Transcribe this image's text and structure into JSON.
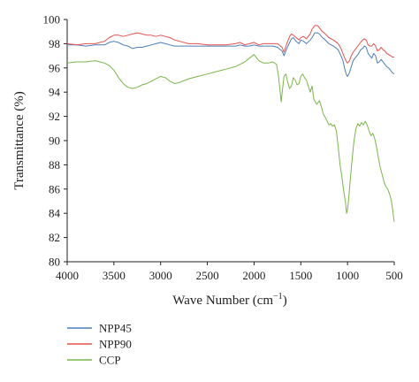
{
  "chart_data": {
    "type": "line",
    "title": "",
    "xlabel": "Wave Number (cm",
    "xlabel_superscript": "−1",
    "xlabel_suffix": ")",
    "ylabel": "Transmittance (%)",
    "xlim": [
      4000,
      500
    ],
    "x_reversed": true,
    "ylim": [
      80,
      100
    ],
    "x_ticks": [
      4000,
      3500,
      3000,
      2500,
      2000,
      1500,
      1000,
      500
    ],
    "y_ticks": [
      80,
      82,
      84,
      86,
      88,
      90,
      92,
      94,
      96,
      98,
      100
    ],
    "grid": false,
    "legend_position": "bottom-left",
    "series": [
      {
        "name": "NPP45",
        "color": "#4a7ebb",
        "points": [
          [
            4000,
            97.9
          ],
          [
            3900,
            97.9
          ],
          [
            3800,
            97.8
          ],
          [
            3700,
            97.9
          ],
          [
            3600,
            97.9
          ],
          [
            3550,
            98.1
          ],
          [
            3500,
            98.2
          ],
          [
            3450,
            98.1
          ],
          [
            3400,
            97.9
          ],
          [
            3350,
            97.8
          ],
          [
            3300,
            97.6
          ],
          [
            3250,
            97.7
          ],
          [
            3200,
            97.7
          ],
          [
            3150,
            97.8
          ],
          [
            3100,
            97.9
          ],
          [
            3050,
            98.0
          ],
          [
            3000,
            98.1
          ],
          [
            2950,
            98.0
          ],
          [
            2900,
            97.9
          ],
          [
            2850,
            97.8
          ],
          [
            2800,
            97.8
          ],
          [
            2700,
            97.8
          ],
          [
            2600,
            97.8
          ],
          [
            2500,
            97.8
          ],
          [
            2400,
            97.8
          ],
          [
            2300,
            97.8
          ],
          [
            2200,
            97.8
          ],
          [
            2150,
            97.9
          ],
          [
            2100,
            97.8
          ],
          [
            2050,
            97.8
          ],
          [
            2000,
            97.9
          ],
          [
            1950,
            97.8
          ],
          [
            1900,
            97.8
          ],
          [
            1850,
            97.8
          ],
          [
            1800,
            97.8
          ],
          [
            1750,
            97.7
          ],
          [
            1700,
            97.4
          ],
          [
            1680,
            97.0
          ],
          [
            1650,
            97.6
          ],
          [
            1600,
            98.4
          ],
          [
            1580,
            98.5
          ],
          [
            1550,
            98.2
          ],
          [
            1520,
            98.0
          ],
          [
            1500,
            98.3
          ],
          [
            1470,
            98.2
          ],
          [
            1440,
            98.0
          ],
          [
            1400,
            98.3
          ],
          [
            1380,
            98.5
          ],
          [
            1350,
            98.9
          ],
          [
            1320,
            98.9
          ],
          [
            1300,
            98.8
          ],
          [
            1270,
            98.5
          ],
          [
            1250,
            98.4
          ],
          [
            1200,
            98.0
          ],
          [
            1150,
            97.8
          ],
          [
            1100,
            97.5
          ],
          [
            1070,
            97.0
          ],
          [
            1050,
            96.6
          ],
          [
            1030,
            95.9
          ],
          [
            1010,
            95.4
          ],
          [
            1000,
            95.3
          ],
          [
            980,
            95.6
          ],
          [
            960,
            96.1
          ],
          [
            940,
            96.6
          ],
          [
            920,
            96.8
          ],
          [
            900,
            97.0
          ],
          [
            880,
            97.2
          ],
          [
            860,
            97.5
          ],
          [
            840,
            97.6
          ],
          [
            820,
            97.8
          ],
          [
            800,
            97.7
          ],
          [
            780,
            97.2
          ],
          [
            760,
            97.0
          ],
          [
            740,
            96.8
          ],
          [
            720,
            97.2
          ],
          [
            700,
            97.0
          ],
          [
            680,
            96.4
          ],
          [
            660,
            96.5
          ],
          [
            640,
            96.7
          ],
          [
            620,
            96.5
          ],
          [
            600,
            96.3
          ],
          [
            580,
            96.1
          ],
          [
            560,
            96.0
          ],
          [
            540,
            95.8
          ],
          [
            520,
            95.6
          ],
          [
            500,
            95.5
          ]
        ]
      },
      {
        "name": "NPP90",
        "color": "#e8524a",
        "points": [
          [
            4000,
            98.0
          ],
          [
            3900,
            97.9
          ],
          [
            3800,
            98.0
          ],
          [
            3700,
            98.0
          ],
          [
            3650,
            98.1
          ],
          [
            3600,
            98.2
          ],
          [
            3550,
            98.5
          ],
          [
            3500,
            98.7
          ],
          [
            3450,
            98.7
          ],
          [
            3400,
            98.6
          ],
          [
            3350,
            98.7
          ],
          [
            3300,
            98.8
          ],
          [
            3250,
            98.9
          ],
          [
            3200,
            98.8
          ],
          [
            3150,
            98.7
          ],
          [
            3100,
            98.7
          ],
          [
            3050,
            98.6
          ],
          [
            3000,
            98.7
          ],
          [
            2950,
            98.6
          ],
          [
            2900,
            98.5
          ],
          [
            2850,
            98.3
          ],
          [
            2800,
            98.2
          ],
          [
            2700,
            98.0
          ],
          [
            2600,
            98.0
          ],
          [
            2500,
            97.9
          ],
          [
            2400,
            97.9
          ],
          [
            2300,
            97.9
          ],
          [
            2200,
            98.0
          ],
          [
            2150,
            98.1
          ],
          [
            2100,
            97.9
          ],
          [
            2050,
            98.0
          ],
          [
            2000,
            98.1
          ],
          [
            1950,
            97.9
          ],
          [
            1900,
            98.0
          ],
          [
            1850,
            98.0
          ],
          [
            1800,
            98.0
          ],
          [
            1750,
            98.0
          ],
          [
            1700,
            97.7
          ],
          [
            1680,
            97.3
          ],
          [
            1650,
            98.0
          ],
          [
            1620,
            98.6
          ],
          [
            1600,
            98.8
          ],
          [
            1580,
            98.7
          ],
          [
            1550,
            98.5
          ],
          [
            1520,
            98.3
          ],
          [
            1500,
            98.5
          ],
          [
            1470,
            98.6
          ],
          [
            1440,
            98.4
          ],
          [
            1400,
            98.8
          ],
          [
            1380,
            99.2
          ],
          [
            1350,
            99.5
          ],
          [
            1320,
            99.5
          ],
          [
            1300,
            99.3
          ],
          [
            1270,
            99.0
          ],
          [
            1250,
            98.9
          ],
          [
            1200,
            98.5
          ],
          [
            1150,
            98.3
          ],
          [
            1100,
            98.0
          ],
          [
            1070,
            97.6
          ],
          [
            1050,
            97.2
          ],
          [
            1030,
            96.8
          ],
          [
            1010,
            96.5
          ],
          [
            1000,
            96.4
          ],
          [
            980,
            96.6
          ],
          [
            960,
            97.0
          ],
          [
            940,
            97.3
          ],
          [
            920,
            97.5
          ],
          [
            900,
            97.7
          ],
          [
            880,
            97.9
          ],
          [
            860,
            98.1
          ],
          [
            840,
            98.3
          ],
          [
            820,
            98.4
          ],
          [
            800,
            98.3
          ],
          [
            780,
            97.9
          ],
          [
            760,
            97.8
          ],
          [
            740,
            97.8
          ],
          [
            720,
            98.0
          ],
          [
            700,
            97.8
          ],
          [
            680,
            97.4
          ],
          [
            660,
            97.5
          ],
          [
            640,
            97.7
          ],
          [
            620,
            97.5
          ],
          [
            600,
            97.4
          ],
          [
            580,
            97.2
          ],
          [
            560,
            97.1
          ],
          [
            540,
            97.0
          ],
          [
            520,
            96.9
          ],
          [
            500,
            96.9
          ]
        ]
      },
      {
        "name": "CCP",
        "color": "#7ab648",
        "points": [
          [
            4000,
            96.4
          ],
          [
            3900,
            96.5
          ],
          [
            3800,
            96.5
          ],
          [
            3700,
            96.6
          ],
          [
            3650,
            96.5
          ],
          [
            3600,
            96.4
          ],
          [
            3550,
            96.2
          ],
          [
            3500,
            95.8
          ],
          [
            3450,
            95.2
          ],
          [
            3400,
            94.7
          ],
          [
            3350,
            94.4
          ],
          [
            3300,
            94.3
          ],
          [
            3250,
            94.4
          ],
          [
            3200,
            94.6
          ],
          [
            3150,
            94.7
          ],
          [
            3100,
            94.9
          ],
          [
            3050,
            95.1
          ],
          [
            3000,
            95.3
          ],
          [
            2950,
            95.2
          ],
          [
            2900,
            94.9
          ],
          [
            2850,
            94.7
          ],
          [
            2800,
            94.8
          ],
          [
            2700,
            95.1
          ],
          [
            2600,
            95.3
          ],
          [
            2500,
            95.5
          ],
          [
            2400,
            95.7
          ],
          [
            2300,
            95.9
          ],
          [
            2200,
            96.1
          ],
          [
            2150,
            96.3
          ],
          [
            2100,
            96.5
          ],
          [
            2050,
            96.8
          ],
          [
            2000,
            97.1
          ],
          [
            1950,
            96.6
          ],
          [
            1900,
            96.4
          ],
          [
            1850,
            96.4
          ],
          [
            1800,
            96.5
          ],
          [
            1760,
            96.3
          ],
          [
            1740,
            95.4
          ],
          [
            1720,
            94.0
          ],
          [
            1710,
            93.2
          ],
          [
            1700,
            93.9
          ],
          [
            1680,
            95.3
          ],
          [
            1660,
            95.5
          ],
          [
            1640,
            94.8
          ],
          [
            1620,
            94.3
          ],
          [
            1600,
            94.5
          ],
          [
            1580,
            95.2
          ],
          [
            1560,
            95.0
          ],
          [
            1540,
            94.6
          ],
          [
            1520,
            94.7
          ],
          [
            1500,
            95.3
          ],
          [
            1480,
            95.5
          ],
          [
            1460,
            95.2
          ],
          [
            1440,
            95.0
          ],
          [
            1420,
            94.5
          ],
          [
            1400,
            94.0
          ],
          [
            1380,
            94.5
          ],
          [
            1360,
            93.4
          ],
          [
            1330,
            93.0
          ],
          [
            1300,
            93.3
          ],
          [
            1280,
            92.8
          ],
          [
            1260,
            92.2
          ],
          [
            1230,
            91.8
          ],
          [
            1200,
            91.3
          ],
          [
            1180,
            91.4
          ],
          [
            1160,
            91.2
          ],
          [
            1140,
            91.3
          ],
          [
            1120,
            90.8
          ],
          [
            1100,
            89.5
          ],
          [
            1080,
            88.0
          ],
          [
            1060,
            87.0
          ],
          [
            1040,
            85.8
          ],
          [
            1020,
            84.8
          ],
          [
            1010,
            84.0
          ],
          [
            1000,
            84.3
          ],
          [
            990,
            85.0
          ],
          [
            970,
            86.8
          ],
          [
            950,
            88.5
          ],
          [
            930,
            90.0
          ],
          [
            910,
            91.0
          ],
          [
            890,
            91.4
          ],
          [
            870,
            91.2
          ],
          [
            850,
            91.5
          ],
          [
            830,
            91.3
          ],
          [
            810,
            91.6
          ],
          [
            790,
            91.3
          ],
          [
            770,
            90.8
          ],
          [
            750,
            90.4
          ],
          [
            730,
            90.6
          ],
          [
            710,
            90.2
          ],
          [
            690,
            89.5
          ],
          [
            670,
            88.6
          ],
          [
            650,
            87.8
          ],
          [
            630,
            87.2
          ],
          [
            610,
            86.6
          ],
          [
            590,
            86.2
          ],
          [
            570,
            86.0
          ],
          [
            550,
            85.6
          ],
          [
            530,
            85.0
          ],
          [
            515,
            84.2
          ],
          [
            505,
            83.5
          ],
          [
            500,
            83.3
          ]
        ]
      }
    ]
  }
}
